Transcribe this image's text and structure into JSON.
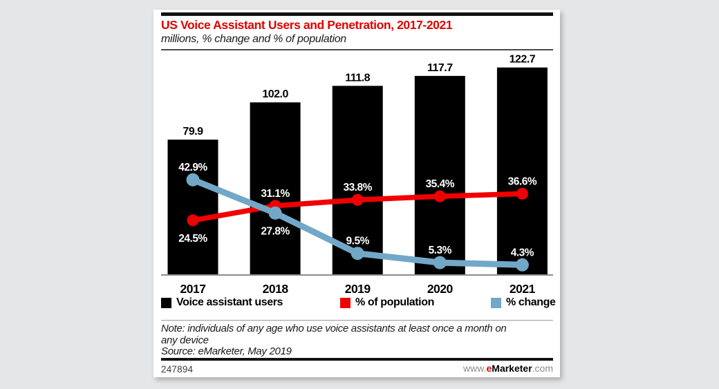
{
  "page": {
    "background_color": "#e4e6e8",
    "panel_color": "#ffffff"
  },
  "header": {
    "title": "US Voice Assistant Users and Penetration, 2017-2021",
    "subtitle": "millions, % change and % of population",
    "title_color": "#e00000"
  },
  "chart_data": {
    "type": "bar+line",
    "categories": [
      "2017",
      "2018",
      "2019",
      "2020",
      "2021"
    ],
    "series": [
      {
        "name": "Voice assistant users",
        "type": "bar",
        "unit": "millions",
        "color": "#000000",
        "values": [
          79.9,
          102.0,
          111.8,
          117.7,
          122.7
        ],
        "labels": [
          "79.9",
          "102.0",
          "111.8",
          "117.7",
          "122.7"
        ]
      },
      {
        "name": "% of population",
        "type": "line",
        "unit": "%",
        "color": "#f00000",
        "values": [
          24.5,
          31.1,
          33.8,
          35.4,
          36.6
        ],
        "labels": [
          "24.5%",
          "31.1%",
          "33.8%",
          "35.4%",
          "36.6%"
        ],
        "label_placement": [
          "below",
          "above",
          "above",
          "above",
          "above"
        ]
      },
      {
        "name": "% change",
        "type": "line",
        "unit": "%",
        "color": "#72a7c7",
        "values": [
          42.9,
          27.8,
          9.5,
          5.3,
          4.3
        ],
        "labels": [
          "42.9%",
          "27.8%",
          "9.5%",
          "5.3%",
          "4.3%"
        ],
        "label_placement": [
          "above",
          "below",
          "above",
          "above",
          "above"
        ]
      }
    ],
    "ylim_bars": [
      0,
      132
    ],
    "ylim_lines": [
      0,
      101
    ],
    "grid": false,
    "legend_position": "bottom",
    "bar_label_color": "#000000",
    "pct_label_color": "#ffffff",
    "axis_color": "#8c8c8c"
  },
  "legend": {
    "items": [
      {
        "label": "Voice assistant users",
        "color": "#000000"
      },
      {
        "label": "% of population",
        "color": "#f00000"
      },
      {
        "label": "% change",
        "color": "#72a7c7"
      }
    ]
  },
  "footnote": {
    "note": "Note: individuals of any age who use voice assistants at least once a month on any device",
    "source": "Source: eMarketer, May 2019"
  },
  "footer": {
    "chart_id": "247894",
    "site_prefix": "www.",
    "site_brand_e": "e",
    "site_brand_rest": "Marketer",
    "site_suffix": ".com"
  }
}
